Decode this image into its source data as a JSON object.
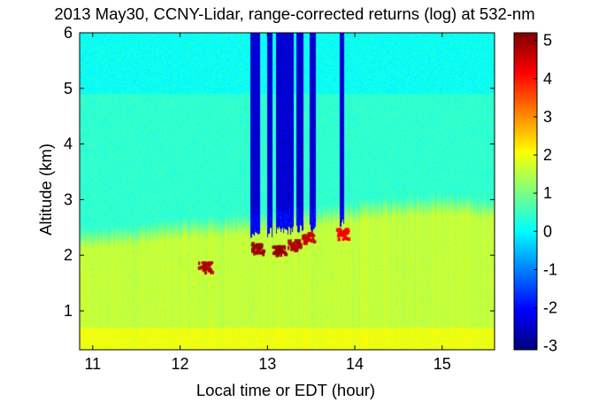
{
  "chart_data": {
    "type": "heatmap",
    "title": "2013 May30, CCNY-Lidar, range-corrected returns (log) at 532-nm",
    "xlabel": "Local time or EDT (hour)",
    "ylabel": "Altitude (km)",
    "xlim": [
      10.85,
      15.6
    ],
    "ylim": [
      0.3,
      6.0
    ],
    "xticks": [
      11,
      12,
      13,
      14,
      15
    ],
    "yticks": [
      1,
      2,
      3,
      4,
      5,
      6
    ],
    "colorbar": {
      "ticks": [
        5,
        4,
        3,
        2,
        1,
        0,
        -1,
        -2,
        -3
      ],
      "tick_labels": [
        "5",
        "4",
        "3",
        "2",
        "1",
        "0",
        "-1",
        "-2",
        "-3"
      ],
      "range": [
        -3.1,
        5.2
      ],
      "colormap": "jet"
    },
    "layers": {
      "boundary_layer_top_km": [
        [
          10.85,
          2.1
        ],
        [
          11.5,
          2.2
        ],
        [
          12.0,
          2.3
        ],
        [
          12.5,
          2.35
        ],
        [
          13.0,
          2.4
        ],
        [
          13.5,
          2.5
        ],
        [
          14.0,
          2.6
        ],
        [
          14.5,
          2.7
        ],
        [
          15.0,
          2.75
        ],
        [
          15.6,
          2.65
        ]
      ],
      "free_troposphere_value": 0.1,
      "boundary_layer_value": 1.6,
      "surface_layer_value": 1.9,
      "upper_layer_value": 0.4
    },
    "clouds": [
      {
        "time": 12.27,
        "altitude_km": 1.8,
        "value": 4.8
      },
      {
        "time": 12.88,
        "altitude_km": 2.15,
        "value": 5.0
      },
      {
        "time": 13.12,
        "altitude_km": 2.1,
        "value": 5.0
      },
      {
        "time": 13.3,
        "altitude_km": 2.2,
        "value": 4.8
      },
      {
        "time": 13.46,
        "altitude_km": 2.35,
        "value": 4.6
      },
      {
        "time": 13.85,
        "altitude_km": 2.4,
        "value": 4.2
      }
    ],
    "attenuated_columns": [
      {
        "start": 12.8,
        "end": 12.92
      },
      {
        "start": 13.0,
        "end": 13.06
      },
      {
        "start": 13.1,
        "end": 13.3
      },
      {
        "start": 13.33,
        "end": 13.41
      },
      {
        "start": 13.48,
        "end": 13.55
      },
      {
        "start": 13.83,
        "end": 13.88
      }
    ]
  }
}
